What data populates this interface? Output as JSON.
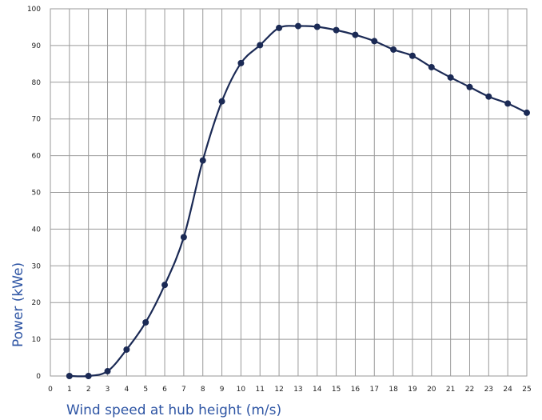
{
  "chart_data": {
    "type": "line",
    "xlabel": "Wind speed at hub height (m/s)",
    "ylabel": "Power  (kWe)",
    "xlim": [
      0,
      25
    ],
    "ylim": [
      0,
      100
    ],
    "xticks": [
      0,
      1,
      2,
      3,
      4,
      5,
      6,
      7,
      8,
      9,
      10,
      11,
      12,
      13,
      14,
      15,
      16,
      17,
      18,
      19,
      20,
      21,
      22,
      23,
      24,
      25
    ],
    "yticks": [
      0,
      10,
      20,
      30,
      40,
      50,
      60,
      70,
      80,
      90,
      100
    ],
    "grid": true,
    "series": [
      {
        "x": [
          1,
          2,
          3,
          4,
          5,
          6,
          7,
          8,
          9,
          10,
          11,
          12,
          13,
          14,
          15,
          16,
          17,
          18,
          19,
          20,
          21,
          22,
          23,
          24,
          25
        ],
        "values": [
          0,
          0,
          1.3,
          7.2,
          14.6,
          24.8,
          37.8,
          58.7,
          74.8,
          85.2,
          90.1,
          94.8,
          95.3,
          95.1,
          94.2,
          92.9,
          91.2,
          88.9,
          87.2,
          84.1,
          81.3,
          78.7,
          76.1,
          74.2,
          71.7
        ]
      }
    ],
    "colors": {
      "line": "#1b2a55",
      "marker": "#1b2a55",
      "grid": "#9a9a9a",
      "axis_title": "#2e55a4"
    }
  }
}
